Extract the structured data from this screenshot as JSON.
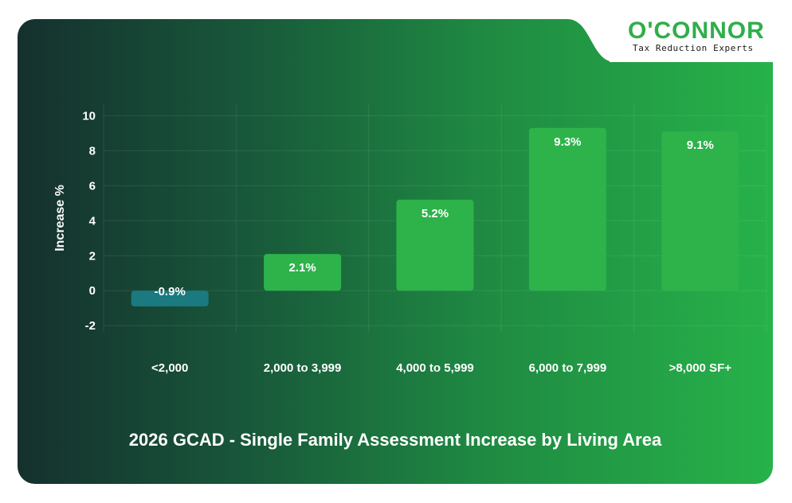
{
  "logo": {
    "wordmark": "O'CONNOR",
    "tagline": "Tax Reduction Experts"
  },
  "chart_data": {
    "type": "bar",
    "title": "2026 GCAD - Single Family Assessment Increase by Living Area",
    "ylabel": "Increase %",
    "xlabel": "",
    "categories": [
      "<2,000",
      "2,000 to 3,999",
      "4,000 to 5,999",
      "6,000 to 7,999",
      ">8,000 SF+"
    ],
    "values": [
      -0.9,
      2.1,
      5.2,
      9.3,
      9.1
    ],
    "data_labels": [
      "-0.9%",
      "2.1%",
      "5.2%",
      "9.3%",
      "9.1%"
    ],
    "yticks": [
      -2,
      0,
      2,
      4,
      6,
      8,
      10
    ],
    "ylim": [
      -2.4,
      10.7
    ],
    "grid": true,
    "legend": "none",
    "colors": {
      "positive": "#2db34a",
      "negative": "#1a7a80",
      "text": "#ffffff",
      "grid": "rgba(255,255,255,0.09)"
    }
  }
}
